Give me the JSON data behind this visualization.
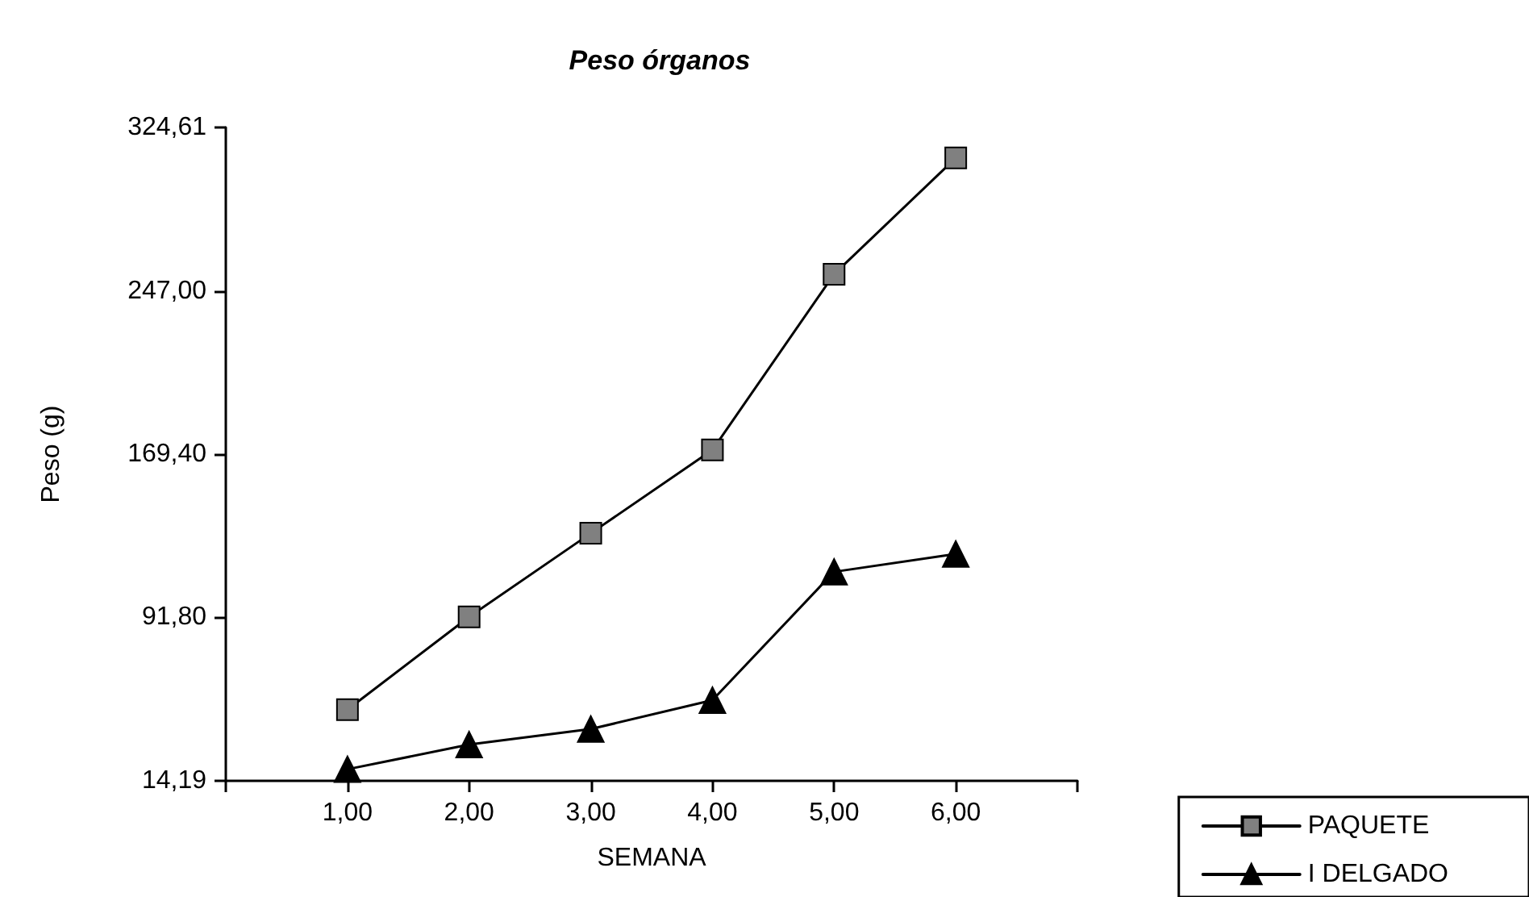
{
  "chart_data": {
    "type": "line",
    "title": "Peso órganos",
    "xlabel": "SEMANA",
    "ylabel": "Peso (g)",
    "x": [
      1,
      2,
      3,
      4,
      5,
      6
    ],
    "series": [
      {
        "name": "PAQUETE",
        "color": "#808080",
        "marker": "square",
        "values": [
          48.0,
          92.1,
          131.8,
          171.4,
          254.9,
          310.1
        ]
      },
      {
        "name": "I DELGADO",
        "color": "#000000",
        "marker": "triangle",
        "values": [
          19.7,
          31.4,
          38.8,
          52.5,
          113.5,
          122.0
        ]
      }
    ],
    "xlim": [
      0,
      7
    ],
    "xticks": [
      {
        "value": 0,
        "label": null
      },
      {
        "value": 1,
        "label": "1,00"
      },
      {
        "value": 2,
        "label": "2,00"
      },
      {
        "value": 3,
        "label": "3,00"
      },
      {
        "value": 4,
        "label": "4,00"
      },
      {
        "value": 5,
        "label": "5,00"
      },
      {
        "value": 6,
        "label": "6,00"
      },
      {
        "value": 7,
        "label": null
      }
    ],
    "ylim": [
      14.19,
      324.61
    ],
    "yticks": [
      {
        "value": 14.19,
        "label": "14,19"
      },
      {
        "value": 91.8,
        "label": "91,80"
      },
      {
        "value": 169.4,
        "label": "169,40"
      },
      {
        "value": 247.0,
        "label": "247,00"
      },
      {
        "value": 324.61,
        "label": "324,61"
      }
    ],
    "grid": false,
    "legend": "bottom right",
    "line_style": "solid"
  }
}
